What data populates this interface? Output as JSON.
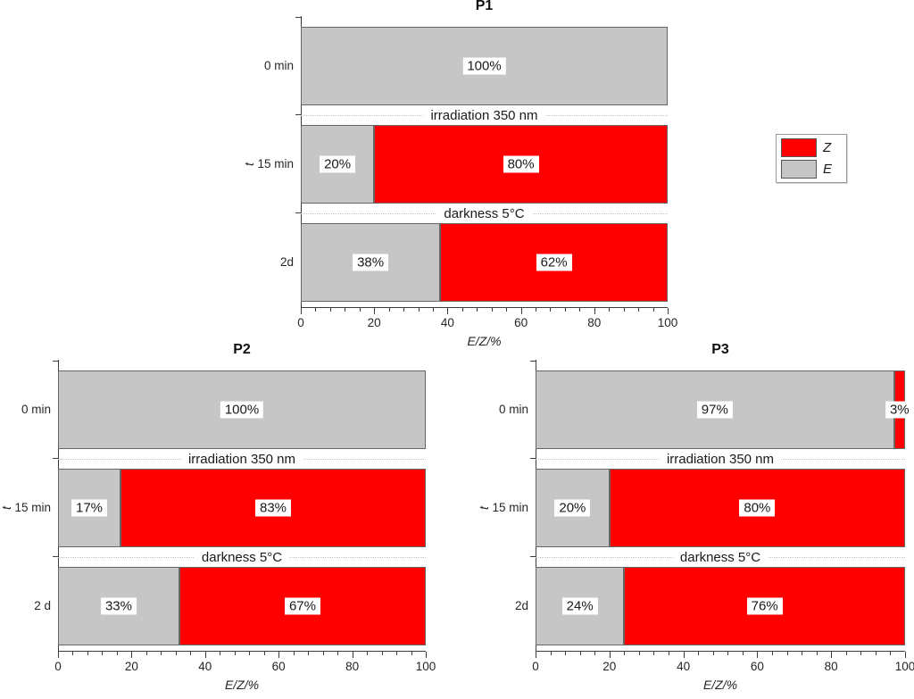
{
  "colors": {
    "z_fill": "#ff0000",
    "e_fill": "#c6c6c6",
    "bar_border": "#666666",
    "axis": "#3c3c3c",
    "text": "#262626",
    "annotation_line": "#c4c4c4",
    "label_bg": "#ffffff"
  },
  "legend": {
    "items": [
      {
        "label": "Z",
        "color": "#ff0000"
      },
      {
        "label": "E",
        "color": "#c6c6c6"
      }
    ]
  },
  "chart_data": [
    {
      "type": "bar",
      "orientation": "horizontal",
      "stacked": true,
      "title": "P1",
      "xlabel": "E/Z/%",
      "ylabel": "t",
      "xlim": [
        0,
        100
      ],
      "xticks": [
        0,
        20,
        40,
        60,
        80,
        100
      ],
      "minor_ticks_per_interval": 4,
      "categories": [
        "0 min",
        "15 min",
        "2d"
      ],
      "series": [
        {
          "name": "E",
          "color": "#c6c6c6",
          "values": [
            100,
            20,
            38
          ]
        },
        {
          "name": "Z",
          "color": "#ff0000",
          "values": [
            0,
            80,
            62
          ]
        }
      ],
      "bar_labels": [
        [
          "100%"
        ],
        [
          "20%",
          "80%"
        ],
        [
          "38%",
          "62%"
        ]
      ],
      "annotations_between_rows": [
        "irradiation 350 nm",
        "darkness 5°C"
      ]
    },
    {
      "type": "bar",
      "orientation": "horizontal",
      "stacked": true,
      "title": "P2",
      "xlabel": "E/Z/%",
      "ylabel": "t",
      "xlim": [
        0,
        100
      ],
      "xticks": [
        0,
        20,
        40,
        60,
        80,
        100
      ],
      "minor_ticks_per_interval": 4,
      "categories": [
        "0 min",
        "15 min",
        "2 d"
      ],
      "series": [
        {
          "name": "E",
          "color": "#c6c6c6",
          "values": [
            100,
            17,
            33
          ]
        },
        {
          "name": "Z",
          "color": "#ff0000",
          "values": [
            0,
            83,
            67
          ]
        }
      ],
      "bar_labels": [
        [
          "100%"
        ],
        [
          "17%",
          "83%"
        ],
        [
          "33%",
          "67%"
        ]
      ],
      "annotations_between_rows": [
        "irradiation 350 nm",
        "darkness 5°C"
      ]
    },
    {
      "type": "bar",
      "orientation": "horizontal",
      "stacked": true,
      "title": "P3",
      "xlabel": "E/Z/%",
      "ylabel": "t",
      "xlim": [
        0,
        100
      ],
      "xticks": [
        0,
        20,
        40,
        60,
        80,
        100
      ],
      "minor_ticks_per_interval": 4,
      "categories": [
        "0 min",
        "15 min",
        "2d"
      ],
      "series": [
        {
          "name": "E",
          "color": "#c6c6c6",
          "values": [
            97,
            20,
            24
          ]
        },
        {
          "name": "Z",
          "color": "#ff0000",
          "values": [
            3,
            80,
            76
          ]
        }
      ],
      "bar_labels": [
        [
          "97%",
          "3%"
        ],
        [
          "20%",
          "80%"
        ],
        [
          "24%",
          "76%"
        ]
      ],
      "annotations_between_rows": [
        "irradiation 350 nm",
        "darkness 5°C"
      ]
    }
  ]
}
